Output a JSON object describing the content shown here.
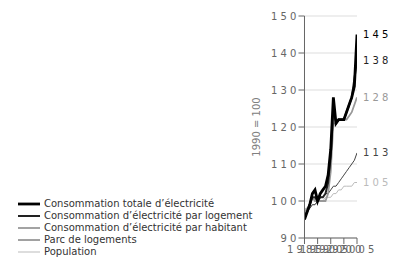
{
  "chart_data": {
    "type": "line",
    "ylabel": "1990 = 100",
    "x": [
      1985,
      1986,
      1987,
      1988,
      1989,
      1990,
      1991,
      1992,
      1993,
      1994,
      1995,
      1996,
      1997,
      1998,
      1999,
      2000,
      2001,
      2002,
      2003,
      2004,
      2005
    ],
    "series": [
      {
        "name": "Consommation totale d’électricité",
        "color": "#000000",
        "values": [
          95,
          97,
          99,
          102,
          103,
          100,
          102,
          103,
          104,
          107,
          114,
          128,
          121,
          122,
          122,
          122,
          124,
          126,
          128,
          131,
          145
        ]
      },
      {
        "name": "Consommation d’électricité par logement",
        "color": "#222222",
        "values": [
          96,
          97,
          99,
          101,
          101,
          100,
          101,
          101,
          102,
          105,
          112,
          125,
          121,
          122,
          122,
          122,
          124,
          126,
          128,
          133,
          138
        ]
      },
      {
        "name": "Consommation d’électricité par habitant",
        "color": "#999999",
        "values": [
          97,
          98,
          99,
          101,
          100,
          100,
          100,
          100,
          100,
          102,
          108,
          121,
          121,
          122,
          122,
          122,
          122,
          123,
          124,
          126,
          128
        ]
      },
      {
        "name": "Parc de logements",
        "color": "#444444",
        "values": [
          97,
          97,
          98,
          99,
          99,
          100,
          101,
          101,
          102,
          102,
          103,
          104,
          104,
          105,
          106,
          107,
          108,
          109,
          110,
          111,
          113
        ]
      },
      {
        "name": "Population",
        "color": "#bbbbbb",
        "values": [
          98,
          98,
          98,
          99,
          99,
          100,
          100,
          100,
          101,
          101,
          101,
          102,
          102,
          103,
          103,
          104,
          104,
          104,
          104,
          105,
          105
        ]
      }
    ],
    "xlim": [
      1985,
      2005
    ],
    "ylim": [
      90,
      150
    ],
    "xticks": [
      {
        "value": 1985,
        "label": "1 9 8 5"
      },
      {
        "value": 1990,
        "label": "1 9 9 0"
      },
      {
        "value": 1995,
        "label": "1 9 9 5"
      },
      {
        "value": 2000,
        "label": "2 0 0 0"
      },
      {
        "value": 2005,
        "label": "2 0 0 5"
      }
    ],
    "yticks": [
      {
        "value": 90,
        "label": "9 0"
      },
      {
        "value": 100,
        "label": "1 0 0"
      },
      {
        "value": 110,
        "label": "1 1 0"
      },
      {
        "value": 120,
        "label": "1 2 0"
      },
      {
        "value": 130,
        "label": "1 3 0"
      },
      {
        "value": 140,
        "label": "1 4 0"
      },
      {
        "value": 150,
        "label": "1 5 0"
      }
    ],
    "annotations": [
      {
        "text": "1 4 5",
        "x": 2005,
        "y": 145,
        "color": "#000000"
      },
      {
        "text": "1 3 8",
        "x": 2005,
        "y": 138,
        "color": "#222222"
      },
      {
        "text": "1 2 8",
        "x": 2005,
        "y": 128,
        "color": "#999999"
      },
      {
        "text": "1 1 3",
        "x": 2005,
        "y": 113,
        "color": "#444444"
      },
      {
        "text": "1 0 5",
        "x": 2005,
        "y": 105,
        "color": "#bbbbbb"
      }
    ],
    "grid": true,
    "legend": "bottom"
  }
}
